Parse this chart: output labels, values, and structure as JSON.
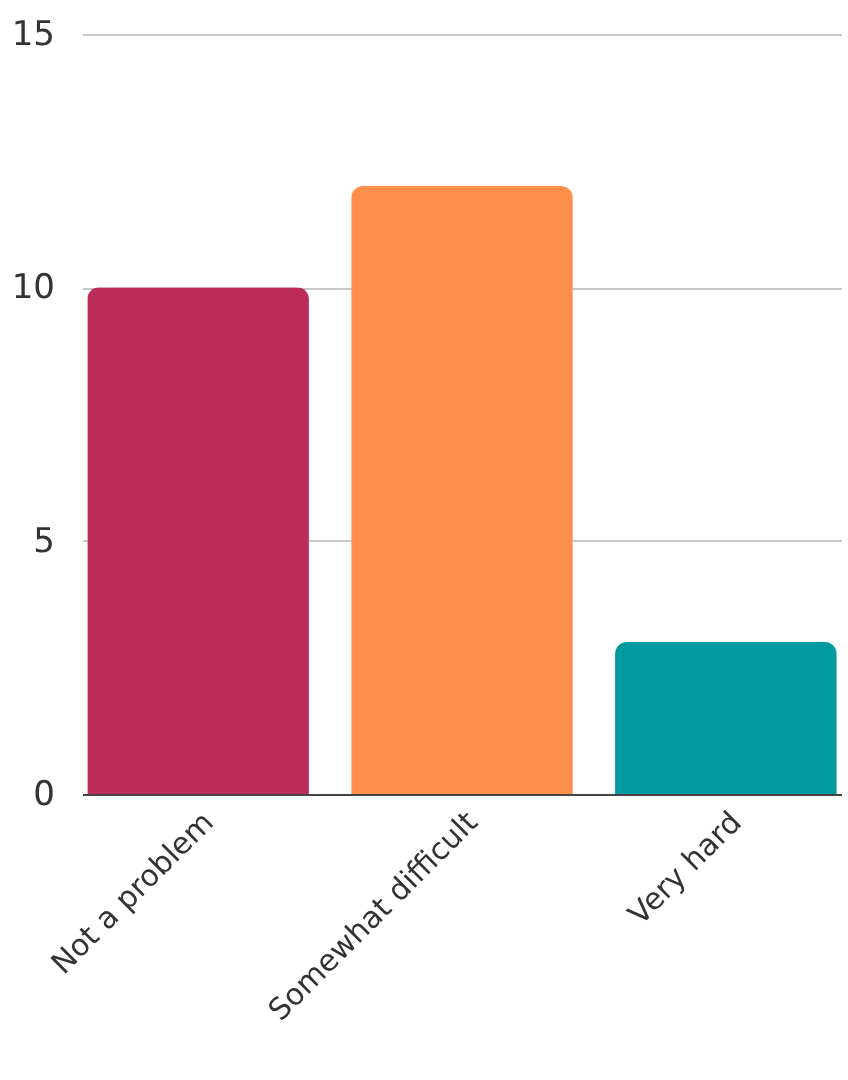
{
  "chart_data": {
    "type": "bar",
    "categories": [
      "Not a problem",
      "Somewhat difficult",
      "Very hard"
    ],
    "values": [
      10,
      12,
      3
    ],
    "colors": [
      "#bb2d58",
      "#ff8f4a",
      "#00999f"
    ],
    "ylim": [
      0,
      15
    ],
    "yticks": [
      0,
      5,
      10,
      15
    ],
    "grid": "y"
  }
}
